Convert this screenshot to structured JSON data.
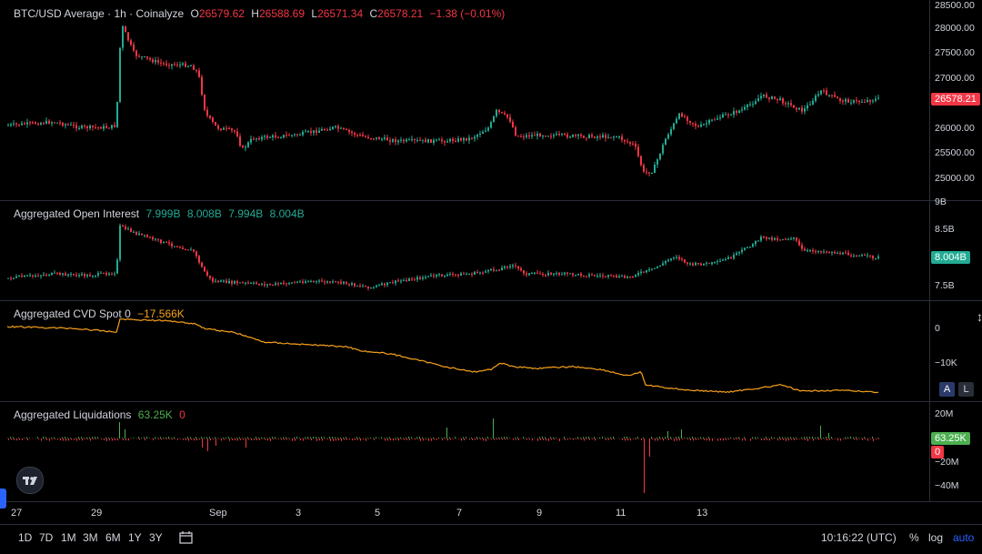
{
  "price": {
    "title": "BTC/USD Average · 1h · Coinalyze",
    "open_label": "O",
    "open": "26579.62",
    "high_label": "H",
    "high": "26588.69",
    "low_label": "L",
    "low": "26571.34",
    "close_label": "C",
    "close": "26578.21",
    "change": "−1.38 (−0.01%)",
    "axis_ticks": [
      "28500.00",
      "28000.00",
      "27500.00",
      "27000.00",
      "26000.00",
      "25500.00",
      "25000.00"
    ],
    "last_tag": "26578.21"
  },
  "open_interest": {
    "title": "Aggregated Open Interest",
    "values": [
      "7.999B",
      "8.008B",
      "7.994B",
      "8.004B"
    ],
    "axis_ticks": [
      "9B",
      "8.5B",
      "7.5B"
    ],
    "last_tag": "8.004B"
  },
  "cvd": {
    "title": "Aggregated CVD Spot 0",
    "value": "−17.566K",
    "axis_ticks": [
      "0",
      "−10K"
    ]
  },
  "liquidations": {
    "title": "Aggregated Liquidations",
    "long_value": "63.25K",
    "short_value": "0",
    "axis_ticks": [
      "20M",
      "−20M",
      "−40M"
    ],
    "long_tag": "63.25K",
    "short_tag": "0"
  },
  "x_axis": [
    "27",
    "29",
    "Sep",
    "3",
    "5",
    "7",
    "9",
    "11",
    "13"
  ],
  "ranges": [
    "1D",
    "7D",
    "1M",
    "3M",
    "6M",
    "1Y",
    "3Y"
  ],
  "clock": "10:16:22 (UTC)",
  "controls": {
    "percent": "%",
    "log": "log",
    "auto": "auto",
    "a": "A",
    "l": "L"
  },
  "colors": {
    "up": "#22ab94",
    "down": "#f23645",
    "cvd": "#f7a21b",
    "liq_long": "#4caf50",
    "liq_short": "#f23645",
    "auto": "#2962ff"
  },
  "icons": {
    "logo": "tradingview-logo-icon",
    "date_range": "calendar-range-icon"
  }
}
